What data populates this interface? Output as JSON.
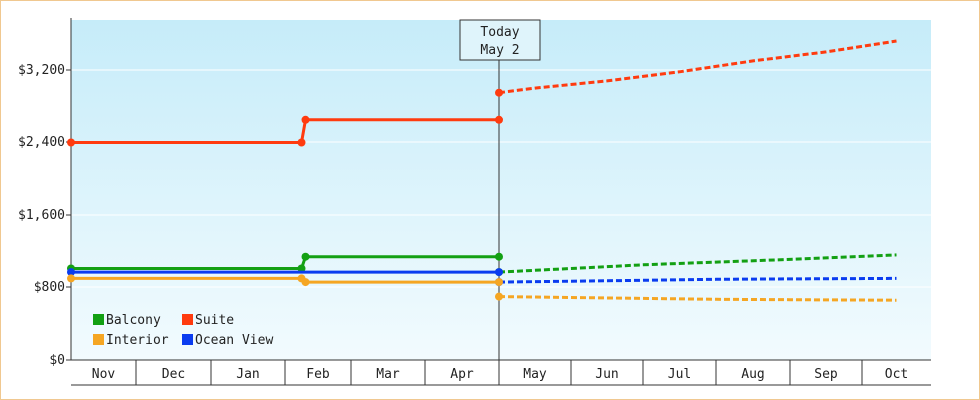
{
  "chart_data": {
    "type": "line",
    "x_categories": [
      "Nov",
      "Dec",
      "Jan",
      "Feb",
      "Mar",
      "Apr",
      "May",
      "Jun",
      "Jul",
      "Aug",
      "Sep",
      "Oct"
    ],
    "y_ticks": [
      "$0",
      "$800",
      "$1,600",
      "$2,400",
      "$3,200"
    ],
    "ylim": [
      0,
      3200
    ],
    "today_marker": {
      "label": "Today",
      "date": "May 2"
    },
    "legend": {
      "placement": "bottom-left",
      "items": [
        "Balcony",
        "Suite",
        "Interior",
        "Ocean View"
      ]
    },
    "colors": {
      "Balcony": "#13a013",
      "Suite": "#ff3b0f",
      "Interior": "#f5a623",
      "Ocean View": "#0a3cf0"
    },
    "series": [
      {
        "name": "Suite",
        "actual": [
          [
            0.0,
            2400
          ],
          [
            3.25,
            2400
          ],
          [
            3.31,
            2650
          ],
          [
            6.0,
            2650
          ]
        ],
        "forecast": [
          [
            6.0,
            2950
          ],
          [
            6.5,
            3000
          ],
          [
            7.5,
            3080
          ],
          [
            8.5,
            3180
          ],
          [
            9.5,
            3300
          ],
          [
            10.5,
            3400
          ],
          [
            11.5,
            3520
          ]
        ]
      },
      {
        "name": "Balcony",
        "actual": [
          [
            0.0,
            1010
          ],
          [
            3.25,
            1010
          ],
          [
            3.31,
            1140
          ],
          [
            6.0,
            1140
          ]
        ],
        "forecast": [
          [
            6.0,
            970
          ],
          [
            7.0,
            1010
          ],
          [
            8.0,
            1050
          ],
          [
            9.0,
            1080
          ],
          [
            10.0,
            1110
          ],
          [
            11.5,
            1160
          ]
        ]
      },
      {
        "name": "Ocean View",
        "actual": [
          [
            0.0,
            970
          ],
          [
            6.0,
            970
          ]
        ],
        "forecast": [
          [
            6.0,
            860
          ],
          [
            7.0,
            870
          ],
          [
            8.0,
            880
          ],
          [
            9.0,
            890
          ],
          [
            10.0,
            895
          ],
          [
            11.5,
            900
          ]
        ]
      },
      {
        "name": "Interior",
        "actual": [
          [
            0.0,
            900
          ],
          [
            3.25,
            900
          ],
          [
            3.31,
            860
          ],
          [
            6.0,
            860
          ]
        ],
        "forecast": [
          [
            6.0,
            700
          ],
          [
            7.0,
            690
          ],
          [
            8.0,
            680
          ],
          [
            9.0,
            670
          ],
          [
            10.0,
            665
          ],
          [
            11.5,
            660
          ]
        ]
      }
    ]
  }
}
